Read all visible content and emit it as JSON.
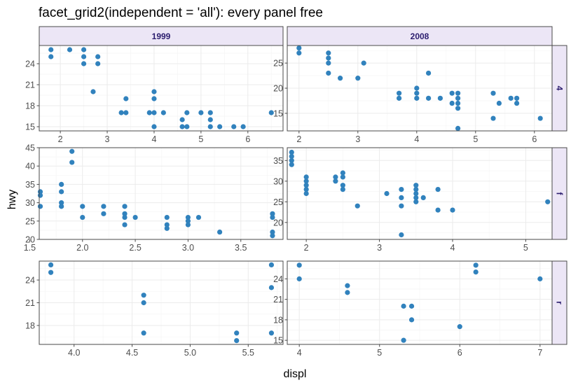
{
  "chart_data": {
    "type": "scatter",
    "title": "facet_grid2(independent = 'all'): every panel free",
    "xlabel": "displ",
    "ylabel": "hwy",
    "col_strips": [
      "1999",
      "2008"
    ],
    "row_strips": [
      "4",
      "f",
      "r"
    ],
    "point_color": "#3182bd",
    "strip_fill": "#ece6f6",
    "strip_text_color": "#2b1d6e",
    "grid": "on",
    "panels": [
      {
        "row": "4",
        "col": "1999",
        "xlim": [
          1.55,
          6.75
        ],
        "ylim": [
          14.4,
          26.6
        ],
        "xticks": [
          2,
          3,
          4,
          5,
          6
        ],
        "yticks": [
          15,
          18,
          21,
          24
        ],
        "points": [
          [
            1.8,
            26
          ],
          [
            1.8,
            25
          ],
          [
            2.2,
            26
          ],
          [
            2.5,
            26
          ],
          [
            2.5,
            25
          ],
          [
            2.5,
            24
          ],
          [
            2.8,
            25
          ],
          [
            2.8,
            24
          ],
          [
            2.7,
            20
          ],
          [
            3.3,
            17
          ],
          [
            3.4,
            17
          ],
          [
            3.4,
            19
          ],
          [
            3.9,
            17
          ],
          [
            4.0,
            17
          ],
          [
            4.0,
            19
          ],
          [
            4.0,
            20
          ],
          [
            4.0,
            15
          ],
          [
            4.2,
            17
          ],
          [
            4.6,
            16
          ],
          [
            4.6,
            15
          ],
          [
            4.7,
            17
          ],
          [
            4.7,
            15
          ],
          [
            5.0,
            17
          ],
          [
            5.2,
            17
          ],
          [
            5.2,
            16
          ],
          [
            5.2,
            15
          ],
          [
            5.4,
            15
          ],
          [
            5.7,
            15
          ],
          [
            5.9,
            15
          ],
          [
            6.5,
            17
          ]
        ]
      },
      {
        "row": "4",
        "col": "2008",
        "xlim": [
          1.8,
          6.3
        ],
        "ylim": [
          11.5,
          28.5
        ],
        "xticks": [
          2,
          3,
          4,
          5,
          6
        ],
        "yticks": [
          15,
          20,
          25
        ],
        "points": [
          [
            2.0,
            28
          ],
          [
            2.0,
            27
          ],
          [
            2.5,
            27
          ],
          [
            2.5,
            26
          ],
          [
            2.5,
            25
          ],
          [
            2.5,
            23
          ],
          [
            2.7,
            22
          ],
          [
            3.0,
            22
          ],
          [
            3.1,
            25
          ],
          [
            3.7,
            19
          ],
          [
            3.7,
            18
          ],
          [
            4.0,
            20
          ],
          [
            4.0,
            19
          ],
          [
            4.0,
            18
          ],
          [
            4.2,
            23
          ],
          [
            4.2,
            18
          ],
          [
            4.4,
            18
          ],
          [
            4.6,
            19
          ],
          [
            4.6,
            17
          ],
          [
            4.7,
            19
          ],
          [
            4.7,
            18
          ],
          [
            4.7,
            17
          ],
          [
            4.7,
            16
          ],
          [
            4.7,
            12
          ],
          [
            5.3,
            19
          ],
          [
            5.3,
            14
          ],
          [
            5.4,
            17
          ],
          [
            5.6,
            18
          ],
          [
            5.7,
            18
          ],
          [
            5.7,
            17
          ],
          [
            6.1,
            14
          ]
        ]
      },
      {
        "row": "f",
        "col": "1999",
        "xlim": [
          1.59,
          3.9
        ],
        "ylim": [
          20,
          45
        ],
        "xticks": [
          1.5,
          2.0,
          2.5,
          3.0,
          3.5
        ],
        "yticks": [
          20,
          25,
          30,
          35,
          40,
          45
        ],
        "points": [
          [
            1.6,
            33
          ],
          [
            1.6,
            32
          ],
          [
            1.6,
            29
          ],
          [
            1.8,
            35
          ],
          [
            1.8,
            33
          ],
          [
            1.8,
            30
          ],
          [
            1.8,
            29
          ],
          [
            1.9,
            44
          ],
          [
            1.9,
            41
          ],
          [
            2.0,
            29
          ],
          [
            2.0,
            26
          ],
          [
            2.2,
            29
          ],
          [
            2.2,
            27
          ],
          [
            2.4,
            29
          ],
          [
            2.4,
            27
          ],
          [
            2.4,
            26
          ],
          [
            2.4,
            24
          ],
          [
            2.5,
            26
          ],
          [
            2.8,
            26
          ],
          [
            2.8,
            24
          ],
          [
            2.8,
            23
          ],
          [
            3.0,
            26
          ],
          [
            3.0,
            25
          ],
          [
            3.0,
            24
          ],
          [
            3.1,
            26
          ],
          [
            3.3,
            22
          ],
          [
            3.8,
            27
          ],
          [
            3.8,
            26
          ],
          [
            3.8,
            22
          ],
          [
            3.8,
            21
          ]
        ]
      },
      {
        "row": "f",
        "col": "2008",
        "xlim": [
          1.74,
          5.36
        ],
        "ylim": [
          15.9,
          38.1
        ],
        "xticks": [
          2,
          3,
          4,
          5
        ],
        "yticks": [
          20,
          25,
          30,
          35
        ],
        "points": [
          [
            1.8,
            37
          ],
          [
            1.8,
            36
          ],
          [
            1.8,
            35
          ],
          [
            1.8,
            34
          ],
          [
            2.0,
            31
          ],
          [
            2.0,
            30
          ],
          [
            2.0,
            29
          ],
          [
            2.0,
            28
          ],
          [
            2.0,
            27
          ],
          [
            2.4,
            31
          ],
          [
            2.4,
            30
          ],
          [
            2.5,
            32
          ],
          [
            2.5,
            31
          ],
          [
            2.5,
            29
          ],
          [
            2.5,
            28
          ],
          [
            2.7,
            24
          ],
          [
            3.1,
            27
          ],
          [
            3.3,
            28
          ],
          [
            3.3,
            26
          ],
          [
            3.3,
            24
          ],
          [
            3.3,
            17
          ],
          [
            3.5,
            29
          ],
          [
            3.5,
            28
          ],
          [
            3.5,
            27
          ],
          [
            3.5,
            26
          ],
          [
            3.5,
            25
          ],
          [
            3.6,
            26
          ],
          [
            3.8,
            28
          ],
          [
            3.8,
            23
          ],
          [
            4.0,
            23
          ],
          [
            5.3,
            25
          ]
        ]
      },
      {
        "row": "r",
        "col": "1999",
        "xlim": [
          3.7,
          5.8
        ],
        "ylim": [
          15.5,
          26.5
        ],
        "xticks": [
          4.0,
          4.5,
          5.0,
          5.5
        ],
        "yticks": [
          18,
          21,
          24
        ],
        "points": [
          [
            3.8,
            26
          ],
          [
            3.8,
            25
          ],
          [
            4.6,
            22
          ],
          [
            4.6,
            21
          ],
          [
            4.6,
            17
          ],
          [
            5.4,
            17
          ],
          [
            5.4,
            16
          ],
          [
            5.7,
            26
          ],
          [
            5.7,
            23
          ],
          [
            5.7,
            17
          ]
        ]
      },
      {
        "row": "r",
        "col": "2008",
        "xlim": [
          3.85,
          7.15
        ],
        "ylim": [
          14.4,
          26.6
        ],
        "xticks": [
          4,
          5,
          6,
          7
        ],
        "yticks": [
          15,
          18,
          21,
          24
        ],
        "points": [
          [
            4.0,
            26
          ],
          [
            4.0,
            24
          ],
          [
            4.6,
            23
          ],
          [
            4.6,
            22
          ],
          [
            5.3,
            20
          ],
          [
            5.3,
            15
          ],
          [
            5.4,
            20
          ],
          [
            5.4,
            18
          ],
          [
            6.0,
            17
          ],
          [
            6.2,
            26
          ],
          [
            6.2,
            25
          ],
          [
            7.0,
            24
          ]
        ]
      }
    ]
  }
}
